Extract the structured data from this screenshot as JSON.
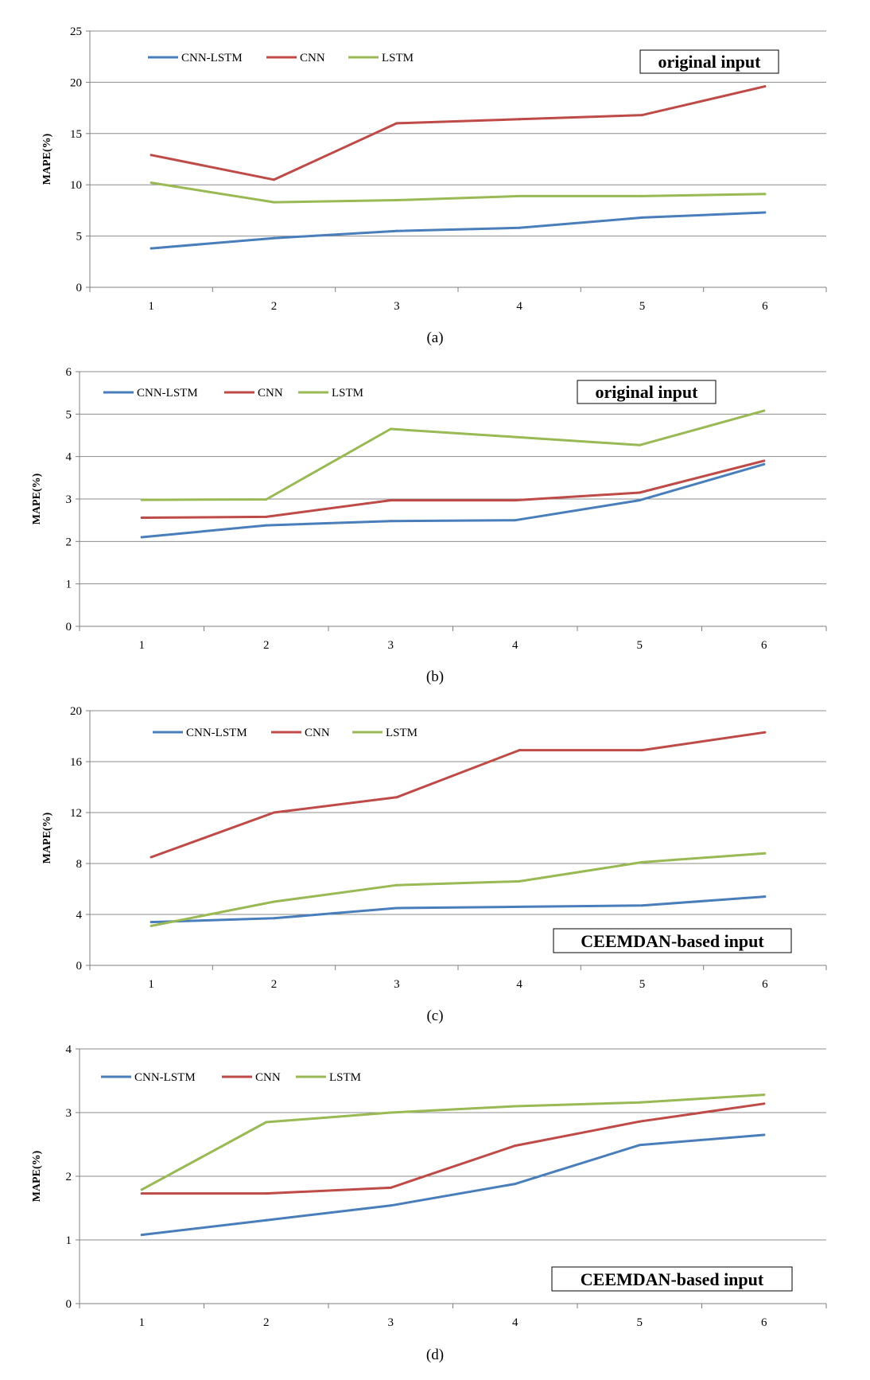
{
  "figure": {
    "captions": [
      "(a)",
      "(b)",
      "(c)",
      "(d)"
    ]
  },
  "chart_data": [
    {
      "type": "line",
      "caption": "(a)",
      "annotation": "original input",
      "xlabel": "",
      "ylabel": "MAPE(%)",
      "x": [
        1,
        2,
        3,
        4,
        5,
        6
      ],
      "ylim": [
        0,
        25
      ],
      "yticks": [
        0,
        5,
        10,
        15,
        20,
        25
      ],
      "grid": true,
      "legend_position": "top-left",
      "series": [
        {
          "name": "CNN-LSTM",
          "color": "#4a7ebb",
          "values": [
            3.8,
            4.8,
            5.5,
            5.8,
            6.8,
            7.3
          ]
        },
        {
          "name": "CNN",
          "color": "#be4b48",
          "values": [
            12.9,
            10.5,
            16.0,
            16.4,
            16.8,
            19.6
          ]
        },
        {
          "name": "LSTM",
          "color": "#98b954",
          "values": [
            10.2,
            8.3,
            8.5,
            8.9,
            8.9,
            9.1
          ]
        }
      ]
    },
    {
      "type": "line",
      "caption": "(b)",
      "annotation": "original input",
      "xlabel": "",
      "ylabel": "MAPE(%)",
      "x": [
        1,
        2,
        3,
        4,
        5,
        6
      ],
      "ylim": [
        0,
        6
      ],
      "yticks": [
        0,
        1,
        2,
        3,
        4,
        5,
        6
      ],
      "grid": true,
      "legend_position": "top-left",
      "series": [
        {
          "name": "CNN-LSTM",
          "color": "#4a7ebb",
          "values": [
            2.1,
            2.38,
            2.48,
            2.5,
            2.97,
            3.82
          ]
        },
        {
          "name": "CNN",
          "color": "#be4b48",
          "values": [
            2.56,
            2.58,
            2.97,
            2.97,
            3.15,
            3.9
          ]
        },
        {
          "name": "LSTM",
          "color": "#98b954",
          "values": [
            2.98,
            2.99,
            4.65,
            4.46,
            4.27,
            5.08
          ]
        }
      ]
    },
    {
      "type": "line",
      "caption": "(c)",
      "annotation": "CEEMDAN-based input",
      "xlabel": "",
      "ylabel": "MAPE(%)",
      "x": [
        1,
        2,
        3,
        4,
        5,
        6
      ],
      "ylim": [
        0,
        20
      ],
      "yticks": [
        0,
        4,
        8,
        12,
        16,
        20
      ],
      "grid": true,
      "legend_position": "top-left",
      "series": [
        {
          "name": "CNN-LSTM",
          "color": "#4a7ebb",
          "values": [
            3.4,
            3.7,
            4.5,
            4.6,
            4.7,
            5.4
          ]
        },
        {
          "name": "CNN",
          "color": "#be4b48",
          "values": [
            8.5,
            12.0,
            13.2,
            16.9,
            16.9,
            18.3
          ]
        },
        {
          "name": "LSTM",
          "color": "#98b954",
          "values": [
            3.1,
            5.0,
            6.3,
            6.6,
            8.1,
            8.8
          ]
        }
      ]
    },
    {
      "type": "line",
      "caption": "(d)",
      "annotation": "CEEMDAN-based input",
      "xlabel": "",
      "ylabel": "MAPE(%)",
      "x": [
        1,
        2,
        3,
        4,
        5,
        6
      ],
      "ylim": [
        0,
        4
      ],
      "yticks": [
        0,
        1,
        2,
        3,
        4
      ],
      "grid": true,
      "legend_position": "top-left",
      "series": [
        {
          "name": "CNN-LSTM",
          "color": "#4a7ebb",
          "values": [
            1.08,
            1.31,
            1.54,
            1.88,
            2.49,
            2.65
          ]
        },
        {
          "name": "CNN",
          "color": "#be4b48",
          "values": [
            1.73,
            1.73,
            1.82,
            2.48,
            2.86,
            3.14
          ]
        },
        {
          "name": "LSTM",
          "color": "#98b954",
          "values": [
            1.79,
            2.85,
            3.0,
            3.1,
            3.16,
            3.28
          ]
        }
      ]
    }
  ]
}
